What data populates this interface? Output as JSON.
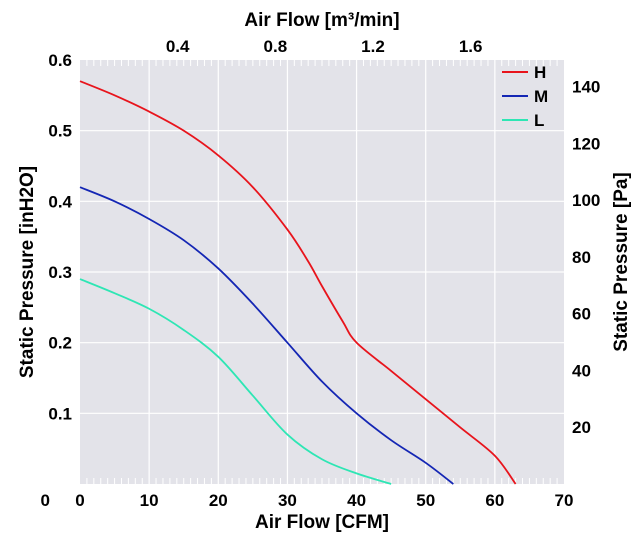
{
  "chart_data": {
    "type": "line",
    "xlabel": "Air Flow  [CFM]",
    "x2label": "Air Flow  [m³/min]",
    "ylabel": "Static Pressure [inH2O]",
    "y2label": "Static Pressure [Pa]",
    "xlim": [
      0,
      70
    ],
    "ylim": [
      0,
      0.6
    ],
    "x2lim": [
      0,
      1.9822
    ],
    "y2lim": [
      0,
      149.4
    ],
    "xticks": [
      0,
      10,
      20,
      30,
      40,
      50,
      60,
      70
    ],
    "yticks": [
      0.1,
      0.2,
      0.3,
      0.4,
      0.5,
      0.6
    ],
    "y0_label": "0",
    "x2ticks": [
      0.4,
      0.8,
      1.2,
      1.6
    ],
    "y2ticks": [
      20,
      40,
      60,
      80,
      100,
      120,
      140
    ],
    "grid": true,
    "background": "#e3e3e9",
    "legend_position": "top-right",
    "series": [
      {
        "name": "H",
        "color": "#e8141c",
        "x": [
          0,
          5,
          10,
          15,
          20,
          25,
          30,
          33,
          35,
          38,
          40,
          45,
          50,
          55,
          60,
          63
        ],
        "y": [
          0.57,
          0.55,
          0.527,
          0.5,
          0.465,
          0.42,
          0.36,
          0.315,
          0.28,
          0.23,
          0.2,
          0.16,
          0.12,
          0.08,
          0.04,
          0.0
        ]
      },
      {
        "name": "M",
        "color": "#1426b4",
        "x": [
          0,
          5,
          10,
          15,
          20,
          25,
          30,
          35,
          40,
          45,
          50,
          54
        ],
        "y": [
          0.42,
          0.4,
          0.375,
          0.345,
          0.305,
          0.255,
          0.2,
          0.145,
          0.1,
          0.062,
          0.03,
          0.0
        ]
      },
      {
        "name": "L",
        "color": "#2ee6b4",
        "x": [
          0,
          5,
          10,
          15,
          20,
          25,
          30,
          35,
          40,
          45
        ],
        "y": [
          0.29,
          0.27,
          0.248,
          0.218,
          0.18,
          0.125,
          0.07,
          0.035,
          0.015,
          0.0
        ]
      }
    ]
  }
}
